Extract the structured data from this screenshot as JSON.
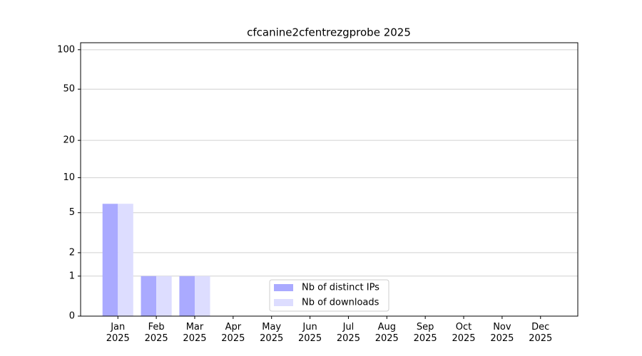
{
  "chart_data": {
    "type": "bar",
    "title": "cfcanine2cfentrezgprobe 2025",
    "categories": [
      "Jan\n2025",
      "Feb\n2025",
      "Mar\n2025",
      "Apr\n2025",
      "May\n2025",
      "Jun\n2025",
      "Jul\n2025",
      "Aug\n2025",
      "Sep\n2025",
      "Oct\n2025",
      "Nov\n2025",
      "Dec\n2025"
    ],
    "series": [
      {
        "name": "Nb of distinct IPs",
        "color": "#aaaaff",
        "values": [
          6,
          1,
          1,
          0,
          0,
          0,
          0,
          0,
          0,
          0,
          0,
          0
        ]
      },
      {
        "name": "Nb of downloads",
        "color": "#ddddff",
        "values": [
          6,
          1,
          1,
          0,
          0,
          0,
          0,
          0,
          0,
          0,
          0,
          0
        ]
      }
    ],
    "yscale": "log1p",
    "ylim": [
      0,
      113
    ],
    "yticks": [
      0,
      1,
      2,
      5,
      10,
      20,
      50,
      100
    ],
    "grid": true,
    "legend": "lower center"
  }
}
